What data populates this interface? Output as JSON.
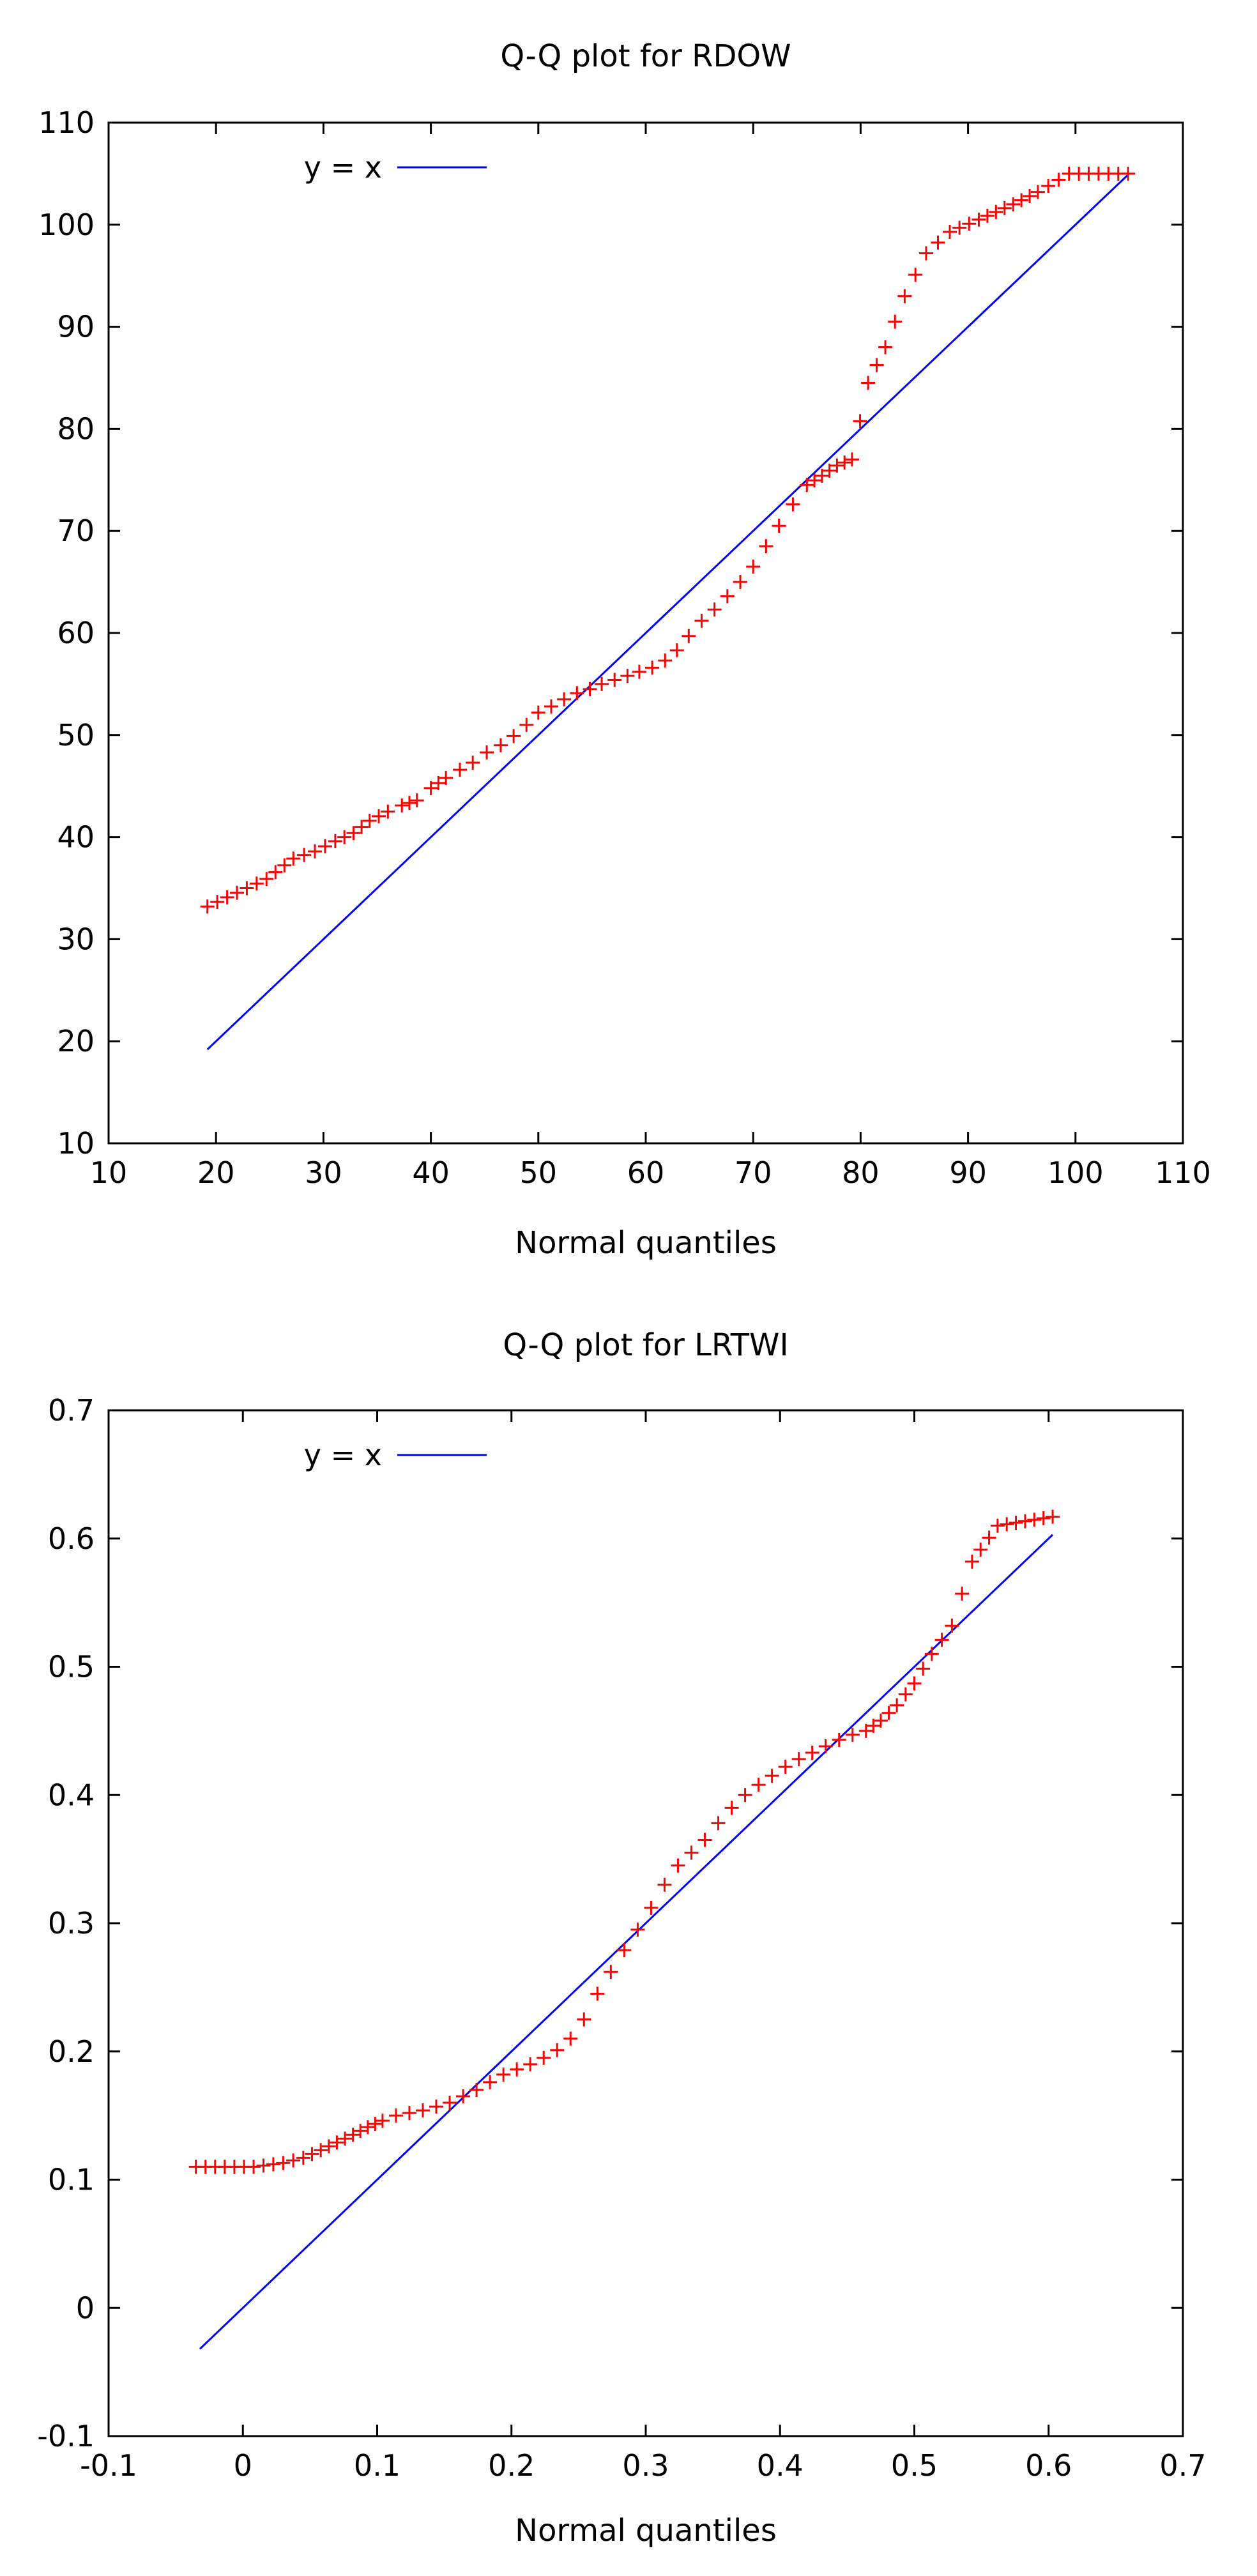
{
  "chart_data": [
    {
      "type": "scatter",
      "title": "Q-Q plot for RDOW",
      "xlabel": "Normal quantiles",
      "ylabel": "",
      "xlim": [
        10,
        110
      ],
      "ylim": [
        10,
        110
      ],
      "xticks": [
        "10",
        "20",
        "30",
        "40",
        "50",
        "60",
        "70",
        "80",
        "90",
        "100",
        "110"
      ],
      "yticks": [
        "10",
        "20",
        "30",
        "40",
        "50",
        "60",
        "70",
        "80",
        "90",
        "100",
        "110"
      ],
      "legend": {
        "label": "y = x",
        "position": "top-left"
      },
      "reference_line": {
        "x": [
          19.2,
          104.9
        ],
        "y": [
          19.2,
          104.9
        ],
        "color": "#0000ff"
      },
      "series_color": "#ff0000",
      "marker": "+",
      "quantile_curve": {
        "x": [
          19.2,
          24.7,
          27.2,
          29.2,
          31.1,
          32.8,
          34.3,
          36.0,
          37.3,
          38.7,
          40.0,
          41.4,
          42.7,
          43.9,
          45.2,
          46.5,
          47.7,
          48.9,
          50.0,
          51.2,
          52.4,
          53.6,
          54.8,
          55.9,
          57.1,
          58.3,
          59.4,
          60.6,
          61.8,
          62.9,
          64.0,
          65.2,
          66.4,
          67.6,
          68.8,
          70.0,
          71.2,
          72.4,
          73.7,
          75.0,
          76.4,
          77.8,
          79.2,
          80.7,
          82.3,
          84.1,
          86.1,
          88.3,
          91.0,
          94.2,
          96.5,
          99.4,
          104.9
        ],
        "y": [
          33.2,
          35.9,
          37.9,
          38.6,
          39.6,
          40.4,
          41.6,
          42.5,
          43.1,
          43.6,
          44.8,
          45.8,
          46.6,
          47.3,
          48.3,
          49.0,
          49.9,
          51.0,
          52.2,
          52.8,
          53.5,
          54.1,
          54.5,
          55.0,
          55.4,
          55.8,
          56.2,
          56.6,
          57.3,
          58.3,
          59.7,
          61.2,
          62.3,
          63.6,
          65.0,
          66.5,
          68.5,
          70.5,
          72.6,
          74.5,
          75.4,
          76.4,
          77.0,
          84.5,
          88.0,
          93.0,
          97.2,
          99.3,
          100.5,
          102.0,
          103.2,
          105.0,
          105.0
        ]
      }
    },
    {
      "type": "scatter",
      "title": "Q-Q plot for LRTWI",
      "xlabel": "Normal quantiles",
      "ylabel": "",
      "xlim": [
        -0.1,
        0.7
      ],
      "ylim": [
        -0.1,
        0.7
      ],
      "xticks": [
        "-0.1",
        "0",
        "0.1",
        "0.2",
        "0.3",
        "0.4",
        "0.5",
        "0.6",
        "0.7"
      ],
      "yticks": [
        "-0.1",
        "0",
        "0.1",
        "0.2",
        "0.3",
        "0.4",
        "0.5",
        "0.6",
        "0.7"
      ],
      "legend": {
        "label": "y = x",
        "position": "top-left"
      },
      "reference_line": {
        "x": [
          -0.032,
          0.603
        ],
        "y": [
          -0.032,
          0.603
        ],
        "color": "#0000ff"
      },
      "series_color": "#ff0000",
      "marker": "+",
      "quantile_curve": {
        "x": [
          -0.035,
          0.008,
          0.03,
          0.045,
          0.058,
          0.07,
          0.082,
          0.093,
          0.104,
          0.114,
          0.124,
          0.134,
          0.144,
          0.154,
          0.164,
          0.174,
          0.184,
          0.194,
          0.204,
          0.214,
          0.224,
          0.234,
          0.244,
          0.254,
          0.264,
          0.274,
          0.284,
          0.294,
          0.304,
          0.314,
          0.324,
          0.334,
          0.344,
          0.354,
          0.364,
          0.374,
          0.384,
          0.394,
          0.404,
          0.414,
          0.424,
          0.434,
          0.444,
          0.454,
          0.464,
          0.475,
          0.487,
          0.5,
          0.513,
          0.528,
          0.543,
          0.562,
          0.603
        ],
        "y": [
          0.11,
          0.11,
          0.113,
          0.117,
          0.123,
          0.129,
          0.135,
          0.141,
          0.146,
          0.15,
          0.152,
          0.154,
          0.157,
          0.16,
          0.165,
          0.17,
          0.176,
          0.182,
          0.186,
          0.19,
          0.195,
          0.201,
          0.21,
          0.225,
          0.245,
          0.262,
          0.279,
          0.295,
          0.312,
          0.33,
          0.345,
          0.355,
          0.365,
          0.378,
          0.39,
          0.4,
          0.408,
          0.415,
          0.422,
          0.428,
          0.433,
          0.438,
          0.443,
          0.447,
          0.45,
          0.458,
          0.47,
          0.487,
          0.51,
          0.532,
          0.582,
          0.61,
          0.617
        ]
      }
    }
  ]
}
